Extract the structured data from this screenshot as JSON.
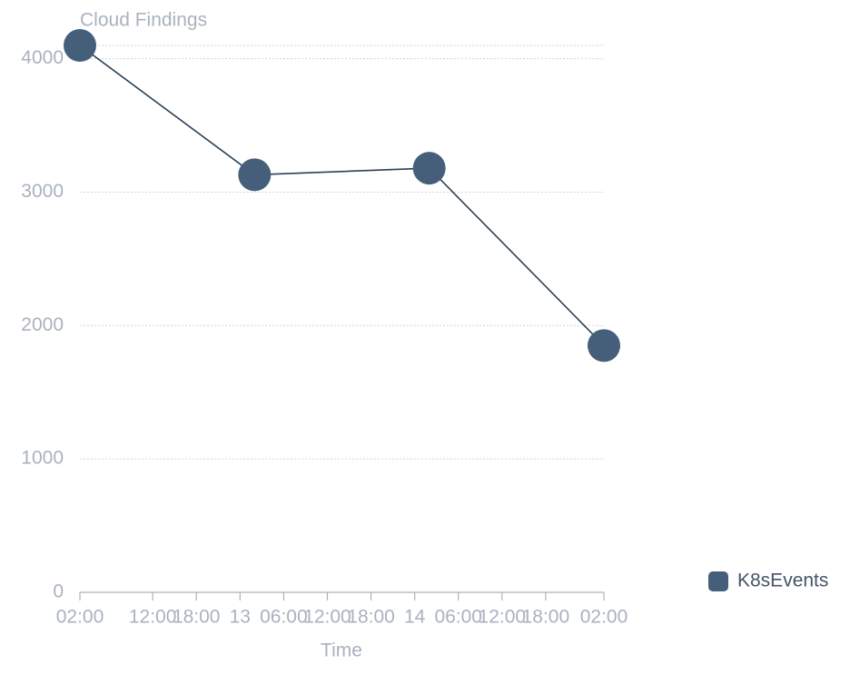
{
  "chart_data": {
    "type": "line",
    "title": "Cloud Findings",
    "x_label": "Time",
    "x": [
      2,
      26,
      50,
      74
    ],
    "series": [
      {
        "name": "K8sEvents",
        "color": "#455f7b",
        "line_color": "#2a3f55",
        "values": [
          4100,
          3130,
          3180,
          1850
        ]
      }
    ],
    "xlim": [
      2,
      74
    ],
    "xticks": [
      {
        "value": 2,
        "label": "02:00"
      },
      {
        "value": 12,
        "label": "12:00"
      },
      {
        "value": 18,
        "label": "18:00"
      },
      {
        "value": 24,
        "label": "13"
      },
      {
        "value": 30,
        "label": "06:00"
      },
      {
        "value": 36,
        "label": "12:00"
      },
      {
        "value": 42,
        "label": "18:00"
      },
      {
        "value": 48,
        "label": "14"
      },
      {
        "value": 54,
        "label": "06:00"
      },
      {
        "value": 60,
        "label": "12:00"
      },
      {
        "value": 66,
        "label": "18:00"
      },
      {
        "value": 74,
        "label": "02:00"
      }
    ],
    "ylim": [
      0,
      4100
    ],
    "yticks": [
      0,
      1000,
      2000,
      3000,
      4000
    ],
    "grid": true,
    "legend": "right"
  }
}
